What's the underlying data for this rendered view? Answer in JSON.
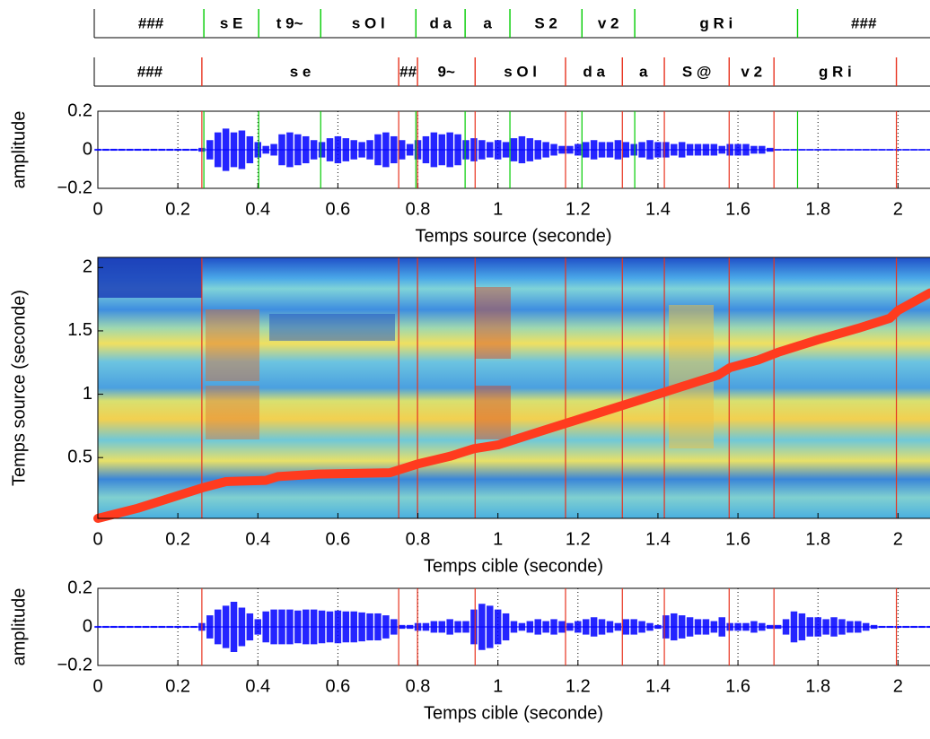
{
  "chart_data": [
    {
      "type": "segments",
      "xlim": [
        0,
        2.08
      ],
      "color": "#00cc00",
      "labels": [
        "###",
        "s E",
        "t 9~",
        "s O l",
        "d a",
        "a",
        "S 2",
        "v 2",
        "g R i",
        "###"
      ],
      "boundaries": [
        0.265,
        0.402,
        0.557,
        0.795,
        0.918,
        1.03,
        1.21,
        1.342,
        1.749
      ]
    },
    {
      "type": "segments",
      "xlim": [
        0,
        2.08
      ],
      "color": "#e8321e",
      "labels": [
        "###",
        "s e",
        "##",
        "9~",
        "s O l",
        "d a",
        "a",
        "S @",
        "v 2",
        "g R i"
      ],
      "boundaries": [
        0.26,
        0.752,
        0.799,
        0.943,
        1.169,
        1.311,
        1.416,
        1.578,
        1.69,
        1.996
      ]
    },
    {
      "type": "waveform",
      "color": "#0000ff",
      "ylabel": "amplitude",
      "xlabel": "Temps source (seconde)",
      "xlim": [
        0,
        2.08
      ],
      "ylim": [
        -0.2,
        0.2
      ],
      "grid": true,
      "xticks": [
        0,
        0.2,
        0.4,
        0.6,
        0.8,
        1,
        1.2,
        1.4,
        1.6,
        1.8,
        2
      ],
      "yticks": [
        {
          "value": -0.2,
          "label": "−0.2"
        },
        0,
        0.2
      ],
      "x": [
        0,
        0.02,
        0.04,
        0.06,
        0.08,
        0.1,
        0.12,
        0.14,
        0.16,
        0.18,
        0.2,
        0.22,
        0.24,
        0.26,
        0.28,
        0.3,
        0.32,
        0.34,
        0.36,
        0.38,
        0.4,
        0.42,
        0.44,
        0.46,
        0.48,
        0.5,
        0.52,
        0.54,
        0.56,
        0.58,
        0.6,
        0.62,
        0.64,
        0.66,
        0.68,
        0.7,
        0.72,
        0.74,
        0.76,
        0.78,
        0.8,
        0.82,
        0.84,
        0.86,
        0.88,
        0.9,
        0.92,
        0.94,
        0.96,
        0.98,
        1,
        1.02,
        1.04,
        1.06,
        1.08,
        1.1,
        1.12,
        1.14,
        1.16,
        1.18,
        1.2,
        1.22,
        1.24,
        1.26,
        1.28,
        1.3,
        1.32,
        1.34,
        1.36,
        1.38,
        1.4,
        1.42,
        1.44,
        1.46,
        1.48,
        1.5,
        1.52,
        1.54,
        1.56,
        1.58,
        1.6,
        1.62,
        1.64,
        1.66,
        1.68,
        1.7,
        1.72,
        1.74,
        1.76,
        1.78,
        1.8,
        1.82,
        1.84,
        1.86,
        1.88,
        1.9,
        1.92,
        1.94,
        1.96,
        1.98,
        2,
        2.02,
        2.04,
        2.06,
        2.08
      ],
      "values": [
        0.005,
        0.005,
        0.005,
        0.005,
        0.005,
        0.005,
        0.005,
        0.005,
        0.005,
        0.005,
        0.005,
        0.005,
        0.005,
        0.01,
        0.05,
        0.09,
        0.11,
        0.09,
        0.1,
        0.07,
        0.04,
        0.02,
        0.03,
        0.08,
        0.09,
        0.08,
        0.07,
        0.05,
        0.04,
        0.06,
        0.07,
        0.06,
        0.05,
        0.04,
        0.05,
        0.08,
        0.09,
        0.07,
        0.05,
        0.03,
        0.05,
        0.07,
        0.09,
        0.08,
        0.09,
        0.08,
        0.05,
        0.06,
        0.05,
        0.04,
        0.05,
        0.04,
        0.06,
        0.07,
        0.06,
        0.05,
        0.04,
        0.03,
        0.02,
        0.02,
        0.03,
        0.04,
        0.05,
        0.04,
        0.04,
        0.05,
        0.04,
        0.03,
        0.04,
        0.05,
        0.04,
        0.04,
        0.03,
        0.04,
        0.03,
        0.03,
        0.03,
        0.03,
        0.02,
        0.03,
        0.03,
        0.03,
        0.02,
        0.02,
        0.01,
        0.004,
        0.004,
        0.004,
        0.004,
        0.004,
        0.004,
        0.004,
        0.004,
        0.004,
        0.004,
        0.004,
        0.004,
        0.004,
        0.004,
        0.004,
        0.004,
        0.004,
        0.004,
        0.004,
        0.004
      ]
    },
    {
      "type": "heatmap",
      "color": "#ff3b1f",
      "ylabel": "Temps source (seconde)",
      "xlabel": "Temps cible (seconde)",
      "xlim": [
        0,
        2.08
      ],
      "ylim": [
        0.02,
        2.08
      ],
      "xticks": [
        0,
        0.2,
        0.4,
        0.6,
        0.8,
        1,
        1.2,
        1.4,
        1.6,
        1.8,
        2
      ],
      "yticks": [
        0.5,
        1,
        1.5,
        2
      ],
      "x": [
        0,
        0.1,
        0.26,
        0.32,
        0.42,
        0.45,
        0.55,
        0.73,
        0.8,
        0.88,
        0.94,
        1,
        1.1,
        1.2,
        1.3,
        1.4,
        1.5,
        1.55,
        1.58,
        1.65,
        1.7,
        1.8,
        1.9,
        1.98,
        2,
        2.08
      ],
      "values": [
        0.02,
        0.1,
        0.26,
        0.31,
        0.32,
        0.35,
        0.37,
        0.38,
        0.45,
        0.51,
        0.57,
        0.6,
        0.7,
        0.8,
        0.9,
        1,
        1.1,
        1.15,
        1.21,
        1.27,
        1.33,
        1.43,
        1.52,
        1.6,
        1.66,
        1.8
      ]
    },
    {
      "type": "waveform",
      "color": "#0000ff",
      "ylabel": "amplitude",
      "xlabel": "Temps cible (seconde)",
      "xlim": [
        0,
        2.08
      ],
      "ylim": [
        -0.2,
        0.2
      ],
      "grid": true,
      "xticks": [
        0,
        0.2,
        0.4,
        0.6,
        0.8,
        1,
        1.2,
        1.4,
        1.6,
        1.8,
        2
      ],
      "yticks": [
        {
          "value": -0.2,
          "label": "−0.2"
        },
        0,
        0.2
      ],
      "x": [
        0,
        0.02,
        0.04,
        0.06,
        0.08,
        0.1,
        0.12,
        0.14,
        0.16,
        0.18,
        0.2,
        0.22,
        0.24,
        0.26,
        0.28,
        0.3,
        0.32,
        0.34,
        0.36,
        0.38,
        0.4,
        0.42,
        0.44,
        0.46,
        0.48,
        0.5,
        0.52,
        0.54,
        0.56,
        0.58,
        0.6,
        0.62,
        0.64,
        0.66,
        0.68,
        0.7,
        0.72,
        0.74,
        0.76,
        0.78,
        0.8,
        0.82,
        0.84,
        0.86,
        0.88,
        0.9,
        0.92,
        0.94,
        0.96,
        0.98,
        1,
        1.02,
        1.04,
        1.06,
        1.08,
        1.1,
        1.12,
        1.14,
        1.16,
        1.18,
        1.2,
        1.22,
        1.24,
        1.26,
        1.28,
        1.3,
        1.32,
        1.34,
        1.36,
        1.38,
        1.4,
        1.42,
        1.44,
        1.46,
        1.48,
        1.5,
        1.52,
        1.54,
        1.56,
        1.58,
        1.6,
        1.62,
        1.64,
        1.66,
        1.68,
        1.7,
        1.72,
        1.74,
        1.76,
        1.78,
        1.8,
        1.82,
        1.84,
        1.86,
        1.88,
        1.9,
        1.92,
        1.94,
        1.96,
        1.98,
        2,
        2.02,
        2.04,
        2.06,
        2.08
      ],
      "values": [
        0.005,
        0.005,
        0.005,
        0.005,
        0.005,
        0.005,
        0.005,
        0.005,
        0.005,
        0.005,
        0.005,
        0.005,
        0.005,
        0.02,
        0.06,
        0.09,
        0.11,
        0.13,
        0.1,
        0.07,
        0.04,
        0.08,
        0.09,
        0.09,
        0.09,
        0.085,
        0.09,
        0.09,
        0.085,
        0.08,
        0.085,
        0.08,
        0.08,
        0.075,
        0.07,
        0.07,
        0.06,
        0.04,
        0.01,
        0.01,
        0.02,
        0.02,
        0.03,
        0.03,
        0.04,
        0.03,
        0.03,
        0.09,
        0.12,
        0.11,
        0.09,
        0.07,
        0.03,
        0.02,
        0.03,
        0.04,
        0.03,
        0.04,
        0.03,
        0.02,
        0.03,
        0.04,
        0.05,
        0.04,
        0.03,
        0.02,
        0.04,
        0.04,
        0.03,
        0.02,
        0.01,
        0.06,
        0.07,
        0.06,
        0.05,
        0.04,
        0.04,
        0.03,
        0.05,
        0.02,
        0.02,
        0.02,
        0.03,
        0.02,
        0.01,
        0.01,
        0.04,
        0.08,
        0.07,
        0.05,
        0.05,
        0.04,
        0.05,
        0.04,
        0.03,
        0.03,
        0.02,
        0.01,
        0.005,
        0.005,
        0.005,
        0.005,
        0.005,
        0.005,
        0.005
      ]
    }
  ]
}
